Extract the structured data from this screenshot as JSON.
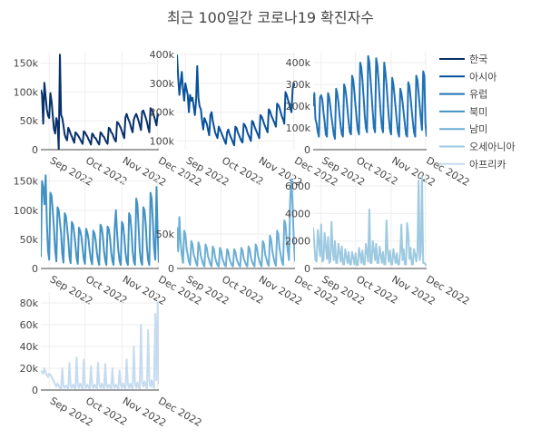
{
  "chart_data": {
    "type": "line",
    "title": "최근 100일간 코로나19 확진자수",
    "x_tick_labels": [
      "Sep 2022",
      "Oct 2022",
      "Nov 2022",
      "Dec 2022"
    ],
    "x_range": [
      "2022-08-25",
      "2022-12-02"
    ],
    "series": [
      {
        "name": "한국",
        "color": "#08306b",
        "ylim": [
          0,
          170000
        ],
        "y_ticks": [
          {
            "v": 0,
            "label": "0"
          },
          {
            "v": 50000,
            "label": "50k"
          },
          {
            "v": 100000,
            "label": "100k"
          },
          {
            "v": 150000,
            "label": "150k"
          }
        ],
        "values": [
          104000,
          96000,
          45000,
          116000,
          92000,
          70000,
          59000,
          55000,
          98000,
          84000,
          60000,
          36000,
          28000,
          55000,
          47000,
          0,
          165000,
          60000,
          55000,
          42000,
          26000,
          20000,
          16000,
          38000,
          34000,
          27000,
          23000,
          17000,
          12000,
          30000,
          28000,
          25000,
          22000,
          18000,
          14000,
          10000,
          32000,
          30000,
          26000,
          23000,
          18000,
          14000,
          9000,
          28000,
          26000,
          21000,
          20000,
          16000,
          12000,
          9000,
          30000,
          28000,
          24000,
          22000,
          17000,
          13000,
          10000,
          38000,
          36000,
          30000,
          28000,
          22000,
          17000,
          14000,
          48000,
          46000,
          42000,
          38000,
          32000,
          26000,
          20000,
          56000,
          62000,
          55000,
          50000,
          44000,
          36000,
          30000,
          52000,
          58000,
          62000,
          56000,
          50000,
          42000,
          34000,
          66000,
          68000,
          62000,
          55000,
          48000,
          38000,
          30000,
          72000,
          70000,
          65000,
          58000,
          50000,
          42000,
          62000,
          58000
        ]
      },
      {
        "name": "아시아",
        "color": "#08519c",
        "ylim": [
          70000,
          410000
        ],
        "y_ticks": [
          {
            "v": 100000,
            "label": "100k"
          },
          {
            "v": 200000,
            "label": "200k"
          },
          {
            "v": 300000,
            "label": "300k"
          },
          {
            "v": 400000,
            "label": "400k"
          }
        ],
        "values": [
          400000,
          320000,
          260000,
          300000,
          340000,
          280000,
          240000,
          300000,
          280000,
          260000,
          200000,
          260000,
          240000,
          250000,
          220000,
          190000,
          240000,
          360000,
          250000,
          220000,
          210000,
          170000,
          140000,
          180000,
          170000,
          160000,
          140000,
          120000,
          190000,
          200000,
          170000,
          150000,
          130000,
          120000,
          110000,
          150000,
          140000,
          130000,
          120000,
          110000,
          100000,
          90000,
          130000,
          140000,
          125000,
          115000,
          105000,
          95000,
          85000,
          150000,
          145000,
          130000,
          120000,
          110000,
          100000,
          95000,
          160000,
          155000,
          145000,
          130000,
          120000,
          110000,
          100000,
          170000,
          165000,
          150000,
          140000,
          130000,
          120000,
          110000,
          190000,
          185000,
          175000,
          160000,
          150000,
          140000,
          130000,
          210000,
          205000,
          190000,
          180000,
          170000,
          160000,
          150000,
          230000,
          225000,
          215000,
          200000,
          185000,
          175000,
          160000,
          270000,
          260000,
          245000,
          230000,
          215000,
          200000,
          280000,
          300000,
          290000
        ]
      },
      {
        "name": "유럽",
        "color": "#2171b5",
        "ylim": [
          0,
          450000
        ],
        "y_ticks": [
          {
            "v": 0,
            "label": "0"
          },
          {
            "v": 100000,
            "label": "100k"
          },
          {
            "v": 200000,
            "label": "200k"
          },
          {
            "v": 300000,
            "label": "300k"
          },
          {
            "v": 400000,
            "label": "400k"
          }
        ],
        "values": [
          200000,
          260000,
          140000,
          120000,
          80000,
          60000,
          240000,
          250000,
          230000,
          170000,
          130000,
          70000,
          60000,
          260000,
          240000,
          200000,
          150000,
          110000,
          70000,
          50000,
          280000,
          260000,
          220000,
          160000,
          110000,
          70000,
          60000,
          300000,
          280000,
          240000,
          180000,
          130000,
          80000,
          70000,
          340000,
          320000,
          260000,
          200000,
          140000,
          90000,
          70000,
          400000,
          380000,
          320000,
          240000,
          160000,
          100000,
          80000,
          430000,
          400000,
          330000,
          250000,
          170000,
          100000,
          80000,
          420000,
          390000,
          320000,
          240000,
          160000,
          100000,
          80000,
          400000,
          360000,
          300000,
          220000,
          150000,
          90000,
          70000,
          330000,
          300000,
          250000,
          190000,
          130000,
          80000,
          60000,
          280000,
          260000,
          220000,
          170000,
          120000,
          70000,
          60000,
          310000,
          290000,
          240000,
          180000,
          130000,
          80000,
          60000,
          340000,
          320000,
          260000,
          200000,
          140000,
          90000,
          360000,
          340000,
          120000,
          60000
        ]
      },
      {
        "name": "북미",
        "color": "#4292c6",
        "ylim": [
          0,
          165000
        ],
        "y_ticks": [
          {
            "v": 0,
            "label": "0"
          },
          {
            "v": 50000,
            "label": "50k"
          },
          {
            "v": 100000,
            "label": "100k"
          },
          {
            "v": 150000,
            "label": "150k"
          }
        ],
        "values": [
          20000,
          150000,
          140000,
          110000,
          160000,
          80000,
          30000,
          15000,
          130000,
          125000,
          100000,
          70000,
          30000,
          12000,
          105000,
          100000,
          80000,
          60000,
          25000,
          10000,
          95000,
          90000,
          70000,
          50000,
          20000,
          9000,
          80000,
          75000,
          60000,
          40000,
          18000,
          8000,
          70000,
          65000,
          55000,
          35000,
          16000,
          8000,
          68000,
          62000,
          50000,
          30000,
          15000,
          7000,
          65000,
          60000,
          48000,
          28000,
          14000,
          6000,
          75000,
          70000,
          55000,
          30000,
          14000,
          6000,
          72000,
          68000,
          52000,
          28000,
          13000,
          6000,
          70000,
          100000,
          60000,
          30000,
          13000,
          6000,
          80000,
          75000,
          55000,
          28000,
          12000,
          6000,
          95000,
          90000,
          65000,
          30000,
          13000,
          6000,
          120000,
          110000,
          70000,
          30000,
          12000,
          6000,
          105000,
          100000,
          75000,
          35000,
          14000,
          6000,
          130000,
          120000,
          80000,
          35000,
          15000,
          140000,
          60000,
          10000
        ]
      },
      {
        "name": "남미",
        "color": "#6baed6",
        "ylim": [
          0,
          140000
        ],
        "y_ticks": [
          {
            "v": 0,
            "label": "0"
          },
          {
            "v": 50000,
            "label": "50k"
          }
        ],
        "values": [
          60000,
          25000,
          75000,
          40000,
          20000,
          8000,
          55000,
          50000,
          30000,
          20000,
          10000,
          5000,
          40000,
          35000,
          20000,
          15000,
          8000,
          4000,
          38000,
          32000,
          18000,
          12000,
          6000,
          3000,
          35000,
          30000,
          18000,
          12000,
          6000,
          3000,
          32000,
          28000,
          16000,
          10000,
          5000,
          3000,
          30000,
          26000,
          15000,
          10000,
          5000,
          3000,
          28000,
          25000,
          14000,
          9000,
          5000,
          3000,
          28000,
          24000,
          14000,
          9000,
          5000,
          3000,
          30000,
          26000,
          15000,
          10000,
          5000,
          3000,
          32000,
          28000,
          16000,
          10000,
          6000,
          3000,
          35000,
          30000,
          18000,
          12000,
          6000,
          3000,
          40000,
          35000,
          20000,
          14000,
          7000,
          4000,
          48000,
          42000,
          25000,
          16000,
          8000,
          4000,
          55000,
          50000,
          30000,
          20000,
          10000,
          5000,
          70000,
          65000,
          40000,
          25000,
          12000,
          100000,
          130000,
          90000,
          40000,
          10000
        ]
      },
      {
        "name": "오세아니아",
        "color": "#9ecae1",
        "ylim": [
          0,
          7000
        ],
        "y_ticks": [
          {
            "v": 0,
            "label": "0"
          },
          {
            "v": 2000,
            "label": "2000"
          },
          {
            "v": 4000,
            "label": "4000"
          },
          {
            "v": 6000,
            "label": "6000"
          }
        ],
        "values": [
          3000,
          1800,
          600,
          500,
          2800,
          2000,
          900,
          3200,
          500,
          600,
          2600,
          1600,
          700,
          2300,
          400,
          500,
          3400,
          1400,
          600,
          2000,
          400,
          400,
          1800,
          1200,
          500,
          1600,
          300,
          300,
          1400,
          900,
          400,
          1200,
          300,
          300,
          1200,
          800,
          300,
          1100,
          250,
          250,
          1500,
          1000,
          400,
          1300,
          300,
          300,
          1800,
          1200,
          500,
          4300,
          400,
          400,
          2000,
          1400,
          600,
          1800,
          400,
          400,
          1600,
          1000,
          400,
          1200,
          300,
          300,
          3500,
          1200,
          500,
          1300,
          300,
          300,
          1400,
          900,
          400,
          1100,
          300,
          300,
          1300,
          3200,
          600,
          1400,
          300,
          300,
          3300,
          2500,
          700,
          1500,
          300,
          300,
          1400,
          1000,
          500,
          1200,
          6400,
          600,
          1200,
          6700,
          400,
          400,
          300,
          200
        ]
      },
      {
        "name": "아프리카",
        "color": "#c6dbef",
        "ylim": [
          0,
          90000
        ],
        "y_ticks": [
          {
            "v": 0,
            "label": "0"
          },
          {
            "v": 20000,
            "label": "20k"
          },
          {
            "v": 40000,
            "label": "40k"
          },
          {
            "v": 60000,
            "label": "60k"
          },
          {
            "v": 80000,
            "label": "80k"
          }
        ],
        "values": [
          18000,
          16000,
          15000,
          20000,
          16000,
          14000,
          12000,
          15000,
          14000,
          12000,
          10000,
          8000,
          5000,
          3000,
          6000,
          4000,
          2000,
          1000,
          20000,
          3000,
          2000,
          4000,
          3000,
          1000,
          25000,
          4000,
          2000,
          5000,
          3000,
          1000,
          30000,
          4000,
          2000,
          6000,
          3000,
          1000,
          28000,
          4000,
          2000,
          5000,
          3000,
          1000,
          22000,
          4000,
          2000,
          5000,
          3000,
          1000,
          25000,
          5000,
          2000,
          6000,
          3000,
          1000,
          24000,
          4000,
          2000,
          5000,
          3000,
          1000,
          20000,
          4000,
          2000,
          5000,
          3000,
          1000,
          18000,
          5000,
          2000,
          6000,
          3000,
          1000,
          28000,
          5000,
          2000,
          6000,
          3000,
          1000,
          40000,
          6000,
          2000,
          7000,
          3000,
          1000,
          60000,
          7000,
          3000,
          8000,
          4000,
          1000,
          55000,
          8000,
          3000,
          9000,
          4000,
          2000,
          70000,
          9000,
          80000,
          5000
        ]
      }
    ]
  }
}
